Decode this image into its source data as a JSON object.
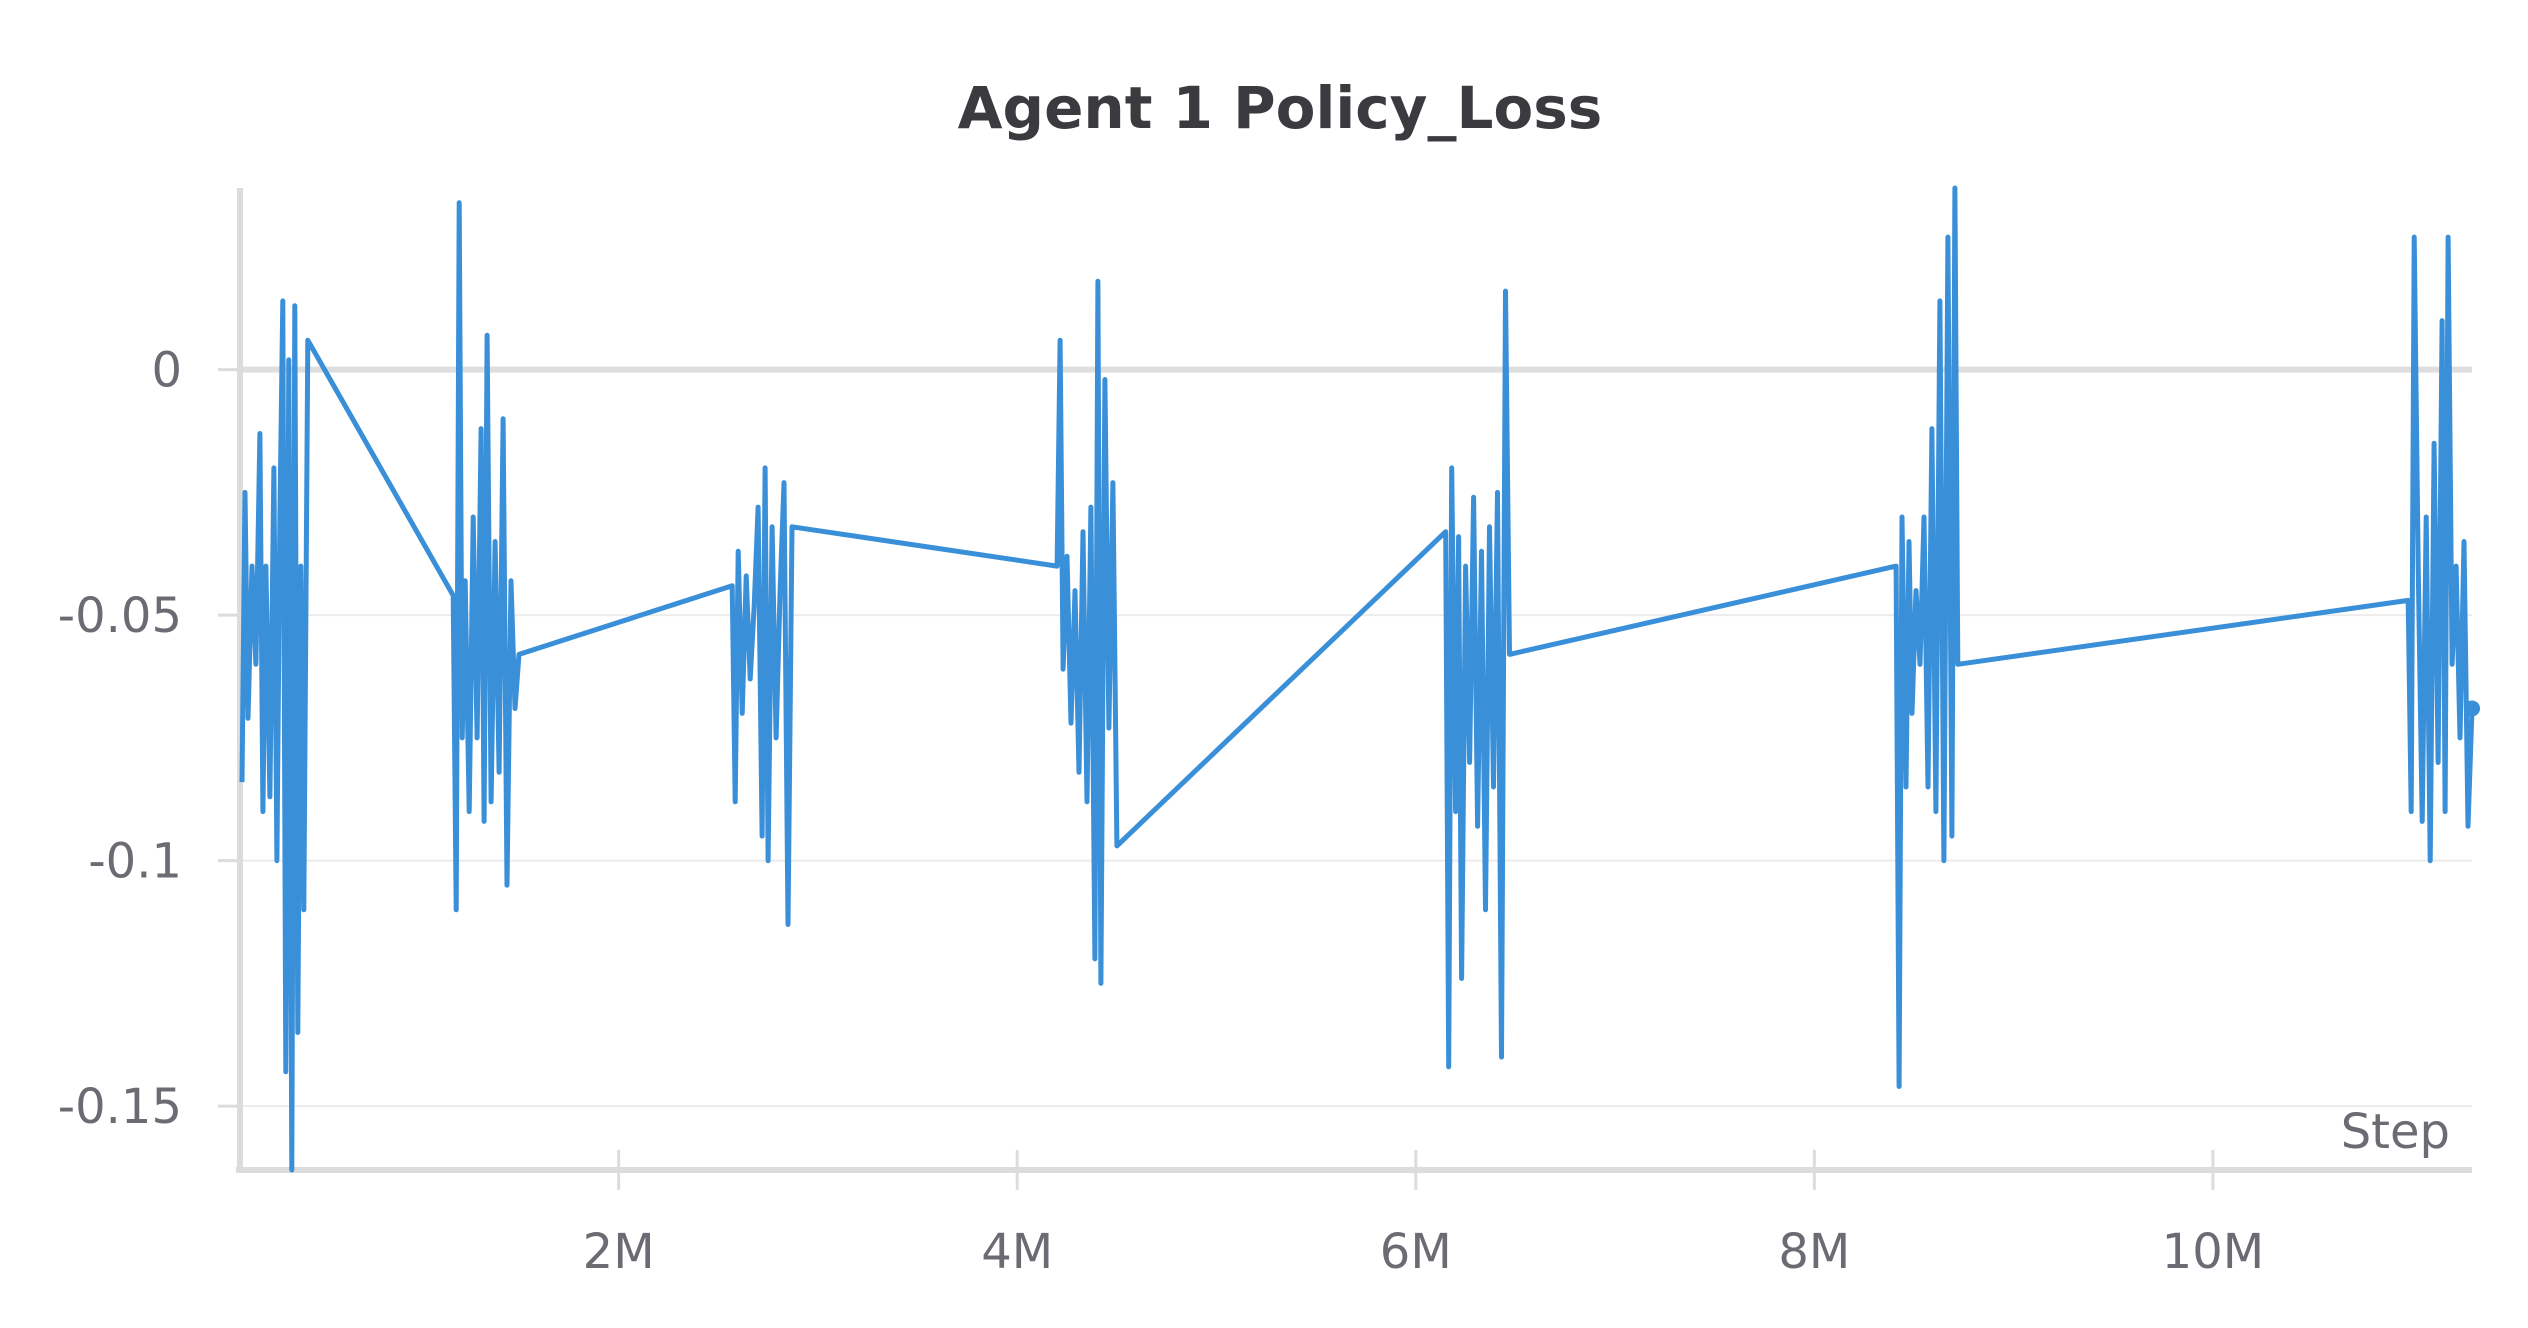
{
  "chart_data": {
    "type": "line",
    "title": "Agent 1 Policy_Loss",
    "xlabel": "Step",
    "ylabel": "",
    "xlim": [
      100000,
      11300000
    ],
    "ylim": [
      -0.163,
      0.037
    ],
    "x_ticks": [
      {
        "value": 2000000,
        "label": "2M"
      },
      {
        "value": 4000000,
        "label": "4M"
      },
      {
        "value": 6000000,
        "label": "6M"
      },
      {
        "value": 8000000,
        "label": "8M"
      },
      {
        "value": 10000000,
        "label": "10M"
      }
    ],
    "y_ticks": [
      {
        "value": 0,
        "label": "0"
      },
      {
        "value": -0.05,
        "label": "-0.05"
      },
      {
        "value": -0.1,
        "label": "-0.1"
      },
      {
        "value": -0.15,
        "label": "-0.15"
      }
    ],
    "grid": "horizontal",
    "line_color": "#3a8fd9",
    "series": [
      {
        "values": [
          [
            110000,
            -0.084
          ],
          [
            125000,
            -0.025
          ],
          [
            140000,
            -0.071
          ],
          [
            160000,
            -0.04
          ],
          [
            180000,
            -0.06
          ],
          [
            200000,
            -0.013
          ],
          [
            215000,
            -0.09
          ],
          [
            230000,
            -0.04
          ],
          [
            250000,
            -0.087
          ],
          [
            270000,
            -0.02
          ],
          [
            285000,
            -0.1
          ],
          [
            300000,
            -0.03
          ],
          [
            315000,
            0.014
          ],
          [
            330000,
            -0.143
          ],
          [
            345000,
            0.002
          ],
          [
            360000,
            -0.163
          ],
          [
            375000,
            0.013
          ],
          [
            390000,
            -0.135
          ],
          [
            405000,
            -0.04
          ],
          [
            420000,
            -0.11
          ],
          [
            440000,
            0.006
          ],
          [
            1170000,
            -0.046
          ],
          [
            1185000,
            -0.11
          ],
          [
            1200000,
            0.034
          ],
          [
            1215000,
            -0.075
          ],
          [
            1230000,
            -0.043
          ],
          [
            1250000,
            -0.09
          ],
          [
            1270000,
            -0.03
          ],
          [
            1290000,
            -0.075
          ],
          [
            1310000,
            -0.012
          ],
          [
            1325000,
            -0.092
          ],
          [
            1340000,
            0.007
          ],
          [
            1360000,
            -0.088
          ],
          [
            1380000,
            -0.035
          ],
          [
            1400000,
            -0.082
          ],
          [
            1420000,
            -0.01
          ],
          [
            1440000,
            -0.105
          ],
          [
            1460000,
            -0.043
          ],
          [
            1480000,
            -0.069
          ],
          [
            1500000,
            -0.058
          ],
          [
            2570000,
            -0.044
          ],
          [
            2585000,
            -0.088
          ],
          [
            2600000,
            -0.037
          ],
          [
            2620000,
            -0.07
          ],
          [
            2640000,
            -0.042
          ],
          [
            2660000,
            -0.063
          ],
          [
            2680000,
            -0.048
          ],
          [
            2700000,
            -0.028
          ],
          [
            2720000,
            -0.095
          ],
          [
            2735000,
            -0.02
          ],
          [
            2750000,
            -0.1
          ],
          [
            2770000,
            -0.032
          ],
          [
            2790000,
            -0.075
          ],
          [
            2810000,
            -0.045
          ],
          [
            2830000,
            -0.023
          ],
          [
            2850000,
            -0.113
          ],
          [
            2870000,
            -0.032
          ],
          [
            4200000,
            -0.04
          ],
          [
            4215000,
            0.006
          ],
          [
            4230000,
            -0.061
          ],
          [
            4250000,
            -0.038
          ],
          [
            4270000,
            -0.072
          ],
          [
            4290000,
            -0.045
          ],
          [
            4310000,
            -0.082
          ],
          [
            4330000,
            -0.033
          ],
          [
            4350000,
            -0.088
          ],
          [
            4370000,
            -0.028
          ],
          [
            4390000,
            -0.12
          ],
          [
            4405000,
            0.018
          ],
          [
            4420000,
            -0.125
          ],
          [
            4440000,
            -0.002
          ],
          [
            4460000,
            -0.073
          ],
          [
            4480000,
            -0.023
          ],
          [
            4500000,
            -0.097
          ],
          [
            6150000,
            -0.033
          ],
          [
            6165000,
            -0.142
          ],
          [
            6180000,
            -0.02
          ],
          [
            6200000,
            -0.09
          ],
          [
            6215000,
            -0.034
          ],
          [
            6230000,
            -0.124
          ],
          [
            6250000,
            -0.04
          ],
          [
            6270000,
            -0.08
          ],
          [
            6290000,
            -0.026
          ],
          [
            6310000,
            -0.093
          ],
          [
            6330000,
            -0.037
          ],
          [
            6350000,
            -0.11
          ],
          [
            6370000,
            -0.032
          ],
          [
            6390000,
            -0.085
          ],
          [
            6410000,
            -0.025
          ],
          [
            6430000,
            -0.14
          ],
          [
            6450000,
            0.016
          ],
          [
            6470000,
            -0.058
          ],
          [
            8410000,
            -0.04
          ],
          [
            8425000,
            -0.146
          ],
          [
            8440000,
            -0.03
          ],
          [
            8460000,
            -0.085
          ],
          [
            8475000,
            -0.035
          ],
          [
            8490000,
            -0.07
          ],
          [
            8510000,
            -0.045
          ],
          [
            8530000,
            -0.06
          ],
          [
            8550000,
            -0.03
          ],
          [
            8570000,
            -0.085
          ],
          [
            8590000,
            -0.012
          ],
          [
            8610000,
            -0.09
          ],
          [
            8630000,
            0.014
          ],
          [
            8650000,
            -0.1
          ],
          [
            8670000,
            0.027
          ],
          [
            8690000,
            -0.095
          ],
          [
            8705000,
            0.037
          ],
          [
            8720000,
            -0.06
          ],
          [
            10980000,
            -0.047
          ],
          [
            10995000,
            -0.09
          ],
          [
            11010000,
            0.027
          ],
          [
            11030000,
            -0.04
          ],
          [
            11050000,
            -0.092
          ],
          [
            11070000,
            -0.03
          ],
          [
            11090000,
            -0.1
          ],
          [
            11110000,
            -0.015
          ],
          [
            11130000,
            -0.08
          ],
          [
            11150000,
            0.01
          ],
          [
            11165000,
            -0.09
          ],
          [
            11180000,
            0.027
          ],
          [
            11200000,
            -0.06
          ],
          [
            11220000,
            -0.04
          ],
          [
            11240000,
            -0.075
          ],
          [
            11260000,
            -0.035
          ],
          [
            11280000,
            -0.093
          ],
          [
            11300000,
            -0.069
          ]
        ]
      }
    ]
  }
}
